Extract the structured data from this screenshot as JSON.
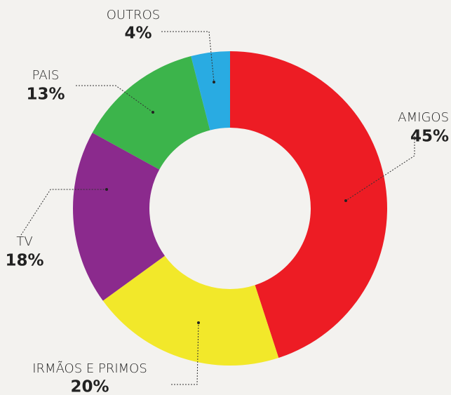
{
  "chart_data": {
    "type": "donut",
    "categories": [
      "AMIGOS",
      "IRMÃOS E PRIMOS",
      "TV",
      "PAIS",
      "OUTROS"
    ],
    "values": [
      45,
      20,
      18,
      13,
      4
    ],
    "value_labels": [
      "45%",
      "20%",
      "18%",
      "13%",
      "4%"
    ],
    "colors": [
      "#ed1c24",
      "#f2e82a",
      "#8b2a8d",
      "#3cb44b",
      "#29abe2"
    ]
  }
}
